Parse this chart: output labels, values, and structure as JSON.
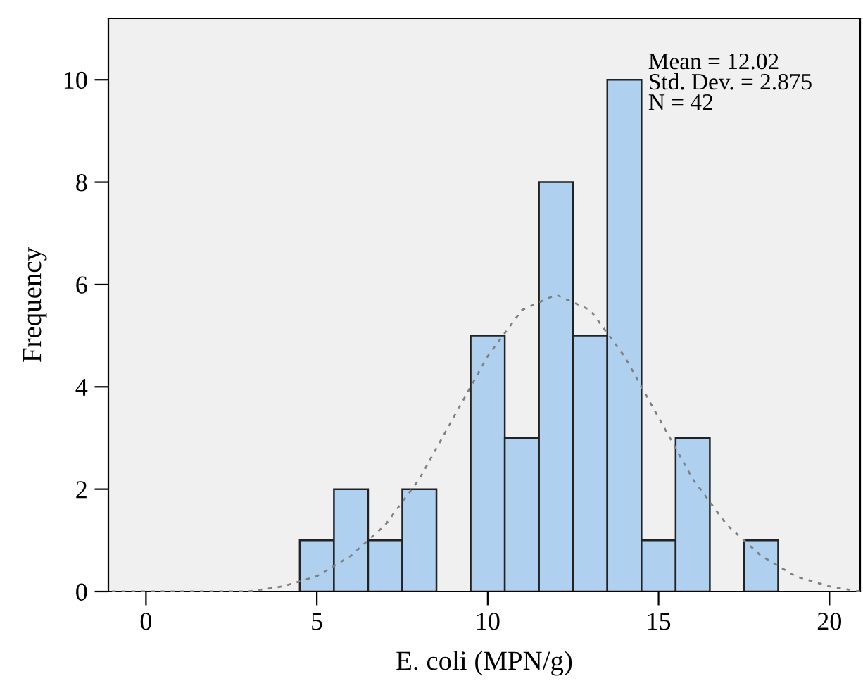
{
  "chart_data": {
    "type": "histogram",
    "xlabel": "E. coli (MPN/g)",
    "ylabel": "Frequency",
    "bins": [
      4.5,
      5.5,
      6.5,
      7.5,
      8.5,
      9.5,
      10.5,
      11.5,
      12.5,
      13.5,
      14.5,
      15.5,
      16.5,
      17.5,
      18.5
    ],
    "values": [
      1,
      2,
      1,
      2,
      0,
      5,
      3,
      8,
      5,
      10,
      1,
      3,
      0,
      1
    ],
    "color": "#b0d0f0",
    "series": [
      {
        "type": "line",
        "color": "#808080",
        "line_style": "dotted",
        "x": [
          -1,
          0,
          1,
          2,
          3,
          4,
          5,
          6,
          7,
          8,
          9,
          10,
          11,
          12,
          13,
          14,
          15,
          16,
          17,
          18,
          19,
          20,
          20.9
        ],
        "values": [
          0.0,
          0.0,
          0.0,
          0.0,
          0.0,
          0.1,
          0.3,
          0.7,
          1.3,
          2.2,
          3.4,
          4.6,
          5.5,
          5.8,
          5.5,
          4.6,
          3.4,
          2.2,
          1.3,
          0.7,
          0.3,
          0.1,
          0.0
        ]
      }
    ],
    "annotations": [
      "Mean = 12.02\nStd. Dev. = 2.875\nN = 42"
    ],
    "xlim": [
      -1.1,
      20.9
    ],
    "ylim": [
      0,
      11.2
    ],
    "xticks": [
      0,
      5,
      10,
      15,
      20
    ],
    "yticks": [
      0,
      2,
      4,
      6,
      8,
      10
    ],
    "grid": false
  }
}
